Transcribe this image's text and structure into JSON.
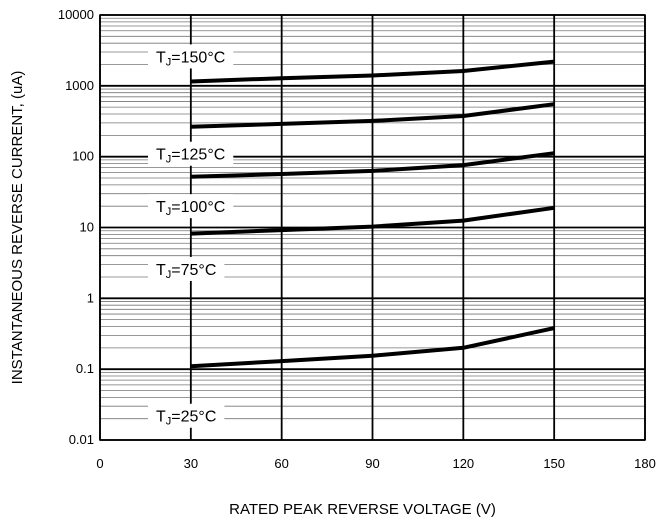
{
  "chart_data": {
    "type": "line",
    "xlabel": "RATED PEAK REVERSE VOLTAGE (V)",
    "ylabel": "INSTANTANEOUS REVERSE CURRENT, (uA)",
    "x_scale": "linear",
    "y_scale": "log",
    "xlim": [
      0,
      180
    ],
    "ylim": [
      0.01,
      10000
    ],
    "x_ticks": [
      0,
      30,
      60,
      90,
      120,
      150,
      180
    ],
    "x_tick_labels": [
      "0",
      "30",
      "60",
      "90",
      "120",
      "150",
      "180"
    ],
    "y_ticks": [
      0.01,
      0.1,
      1,
      10,
      100,
      1000,
      10000
    ],
    "y_tick_labels": [
      "0.01",
      "0.1",
      "1",
      "10",
      "100",
      "1000",
      "10000"
    ],
    "grid": true,
    "series": [
      {
        "name": "TJ=150°C",
        "label_main": "T",
        "label_sub": "J",
        "label_rest": "=150°C",
        "x": [
          30,
          60,
          90,
          120,
          150
        ],
        "y": [
          1150,
          1280,
          1400,
          1620,
          2200
        ]
      },
      {
        "name": "TJ=125°C",
        "label_main": "T",
        "label_sub": "J",
        "label_rest": "=125°C",
        "x": [
          30,
          60,
          90,
          120,
          150
        ],
        "y": [
          265,
          290,
          320,
          375,
          550
        ]
      },
      {
        "name": "TJ=100°C",
        "label_main": "T",
        "label_sub": "J",
        "label_rest": "=100°C",
        "x": [
          30,
          60,
          90,
          120,
          150
        ],
        "y": [
          52,
          57,
          63,
          76,
          112
        ]
      },
      {
        "name": "TJ=75°C",
        "label_main": "T",
        "label_sub": "J",
        "label_rest": "=75°C",
        "x": [
          30,
          60,
          90,
          120,
          150
        ],
        "y": [
          8.2,
          9.2,
          10.3,
          12.5,
          19
        ]
      },
      {
        "name": "TJ=25°C",
        "label_main": "T",
        "label_sub": "J",
        "label_rest": "=25°C",
        "x": [
          30,
          60,
          90,
          120,
          150
        ],
        "y": [
          0.11,
          0.13,
          0.155,
          0.2,
          0.38
        ]
      }
    ]
  }
}
